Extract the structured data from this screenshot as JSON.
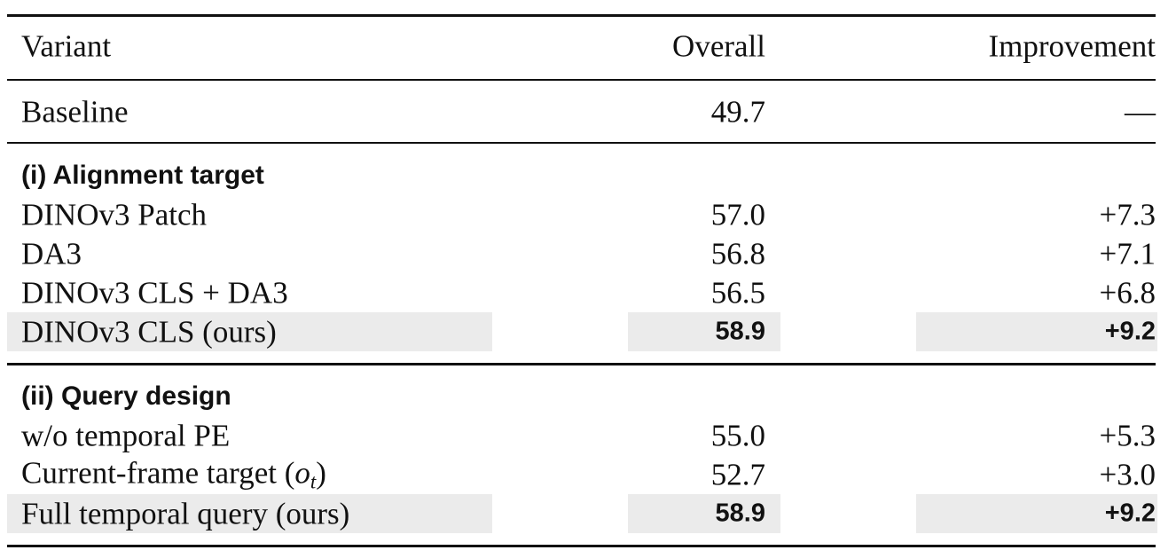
{
  "table": {
    "header": [
      "Variant",
      "Overall",
      "Improvement"
    ],
    "baseline": [
      "Baseline",
      "49.7",
      "—"
    ],
    "sections": [
      {
        "title": "(i) Alignment target",
        "rows": [
          {
            "cells": [
              "DINOv3 Patch",
              "57.0",
              "+7.3"
            ]
          },
          {
            "cells": [
              "DA3",
              "56.8",
              "+7.1"
            ]
          },
          {
            "cells": [
              "DINOv3 CLS + DA3",
              "56.5",
              "+6.8"
            ]
          },
          {
            "cells": [
              "DINOv3 CLS (ours)",
              "58.9",
              "+9.2"
            ],
            "highlighted": true
          }
        ]
      },
      {
        "title": "(ii) Query design",
        "rows": [
          {
            "cells": [
              "w/o temporal PE",
              "55.0",
              "+5.3"
            ]
          },
          {
            "cells": [
              {
                "text": "Current-frame target (",
                "var": "o",
                "sub": "t",
                "close": ")"
              },
              "52.7",
              "+3.0"
            ]
          },
          {
            "cells": [
              "Full temporal query (ours)",
              "58.9",
              "+9.2"
            ],
            "highlighted": true
          }
        ]
      }
    ]
  }
}
